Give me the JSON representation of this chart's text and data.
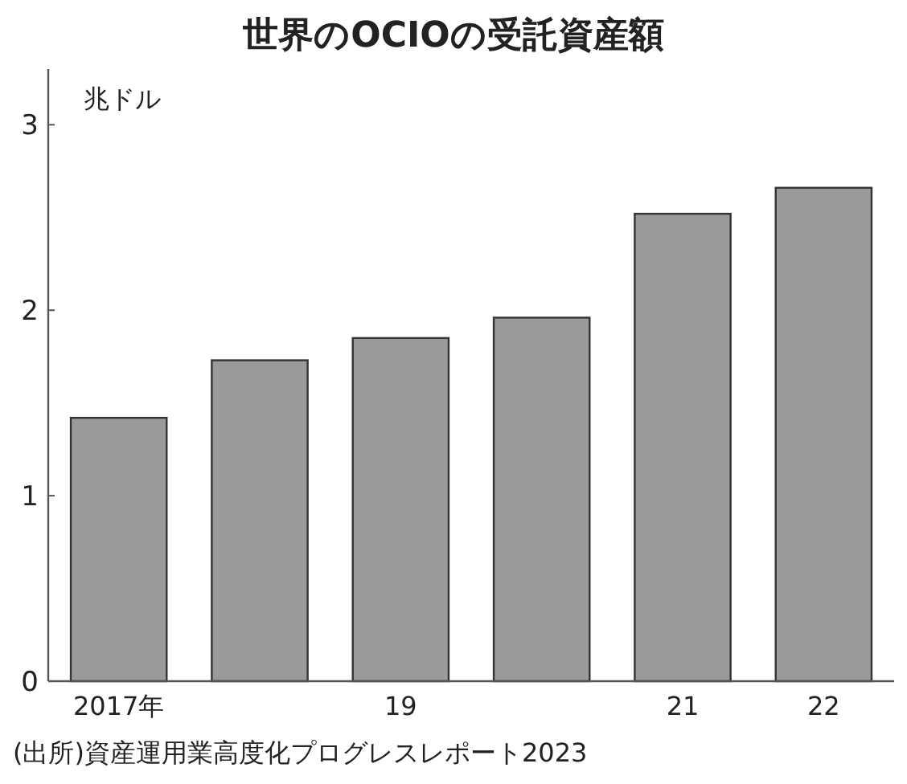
{
  "chart_data": {
    "type": "bar",
    "title": "世界のOCIOの受託資産額",
    "ylabel": "兆ドル",
    "categories": [
      "2017年",
      null,
      "19",
      null,
      "21",
      "22"
    ],
    "values": [
      1.42,
      1.73,
      1.85,
      1.96,
      2.52,
      2.66
    ],
    "color": "#9a9a9a",
    "ylim": [
      0,
      3.3
    ],
    "yticks": [
      0,
      1,
      2,
      3
    ],
    "grid": false,
    "annotations": [
      "(出所)資産運用業高度化プログレスレポート2023"
    ]
  }
}
